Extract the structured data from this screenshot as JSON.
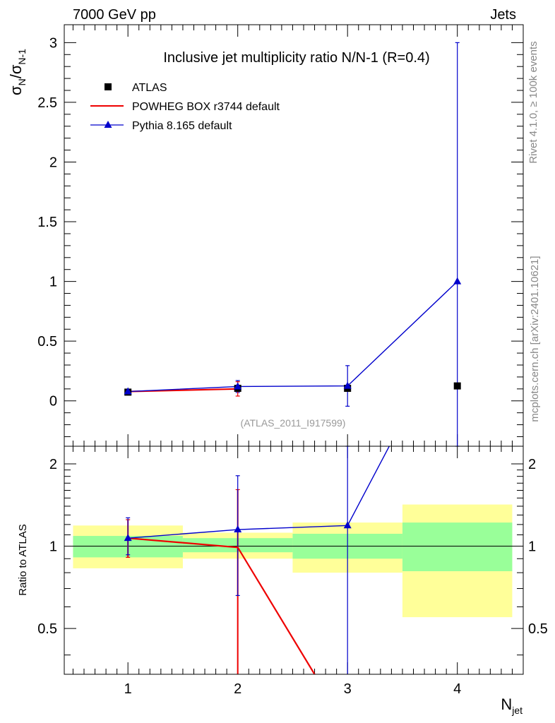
{
  "header": {
    "energy_label": "7000 GeV pp",
    "process_label": "Jets",
    "side_label_top": "Rivet 4.1.0, ≥ 100k events",
    "side_label_bottom": "mcplots.cern.ch [arXiv:2401.10621]"
  },
  "chart_data": [
    {
      "type": "scatter",
      "panel": "main",
      "title": "Inclusive jet multiplicity ratio N/N-1 (R=0.4)",
      "analysis_tag": "(ATLAS_2011_I917599)",
      "ylabel": "σ_N/σ_N-1",
      "ylim": [
        -0.38,
        3.15
      ],
      "xlim": [
        0.42,
        4.6
      ],
      "yticks": [
        0,
        0.5,
        1,
        1.5,
        2,
        2.5,
        3
      ],
      "ytick_labels": [
        "0",
        "0.5",
        "1",
        "1.5",
        "2",
        "2.5",
        "3"
      ],
      "legend": [
        "ATLAS",
        "POWHEG BOX r3744 default",
        "Pythia 8.165 default"
      ],
      "legend_position": "top-left",
      "series": [
        {
          "name": "ATLAS",
          "color": "#000000",
          "marker": "square",
          "x": [
            1,
            2,
            3,
            4
          ],
          "y": [
            0.073,
            0.105,
            0.105,
            0.125
          ],
          "yerr_low": [
            0.008,
            0.01,
            0.012,
            0.02
          ],
          "yerr_high": [
            0.008,
            0.01,
            0.012,
            0.02
          ]
        },
        {
          "name": "POWHEG BOX r3744 default",
          "color": "#ee0000",
          "marker": "line",
          "x": [
            1,
            2
          ],
          "y": [
            0.078,
            0.1
          ],
          "yerr_low": [
            0.012,
            0.06
          ],
          "yerr_high": [
            0.012,
            0.06
          ]
        },
        {
          "name": "Pythia 8.165 default",
          "color": "#0000cc",
          "marker": "triangle",
          "x": [
            1,
            2,
            3,
            4
          ],
          "y": [
            0.078,
            0.12,
            0.125,
            1.0
          ],
          "yerr_low": [
            0.012,
            0.05,
            0.17,
            1.5
          ],
          "yerr_high": [
            0.012,
            0.05,
            0.17,
            2.0
          ]
        }
      ]
    },
    {
      "type": "line",
      "panel": "ratio",
      "ylabel": "Ratio to ATLAS",
      "xlabel": "N_jet",
      "ylim": [
        0.34,
        2.32
      ],
      "yscale": "log",
      "xlim": [
        0.42,
        4.6
      ],
      "xticks": [
        1,
        2,
        3,
        4
      ],
      "xtick_labels": [
        "1",
        "2",
        "3",
        "4"
      ],
      "yticks": [
        0.5,
        1,
        2
      ],
      "ytick_labels": [
        "0.5",
        "1",
        "2"
      ],
      "reference_line": 1,
      "bands": [
        {
          "x_range": [
            0.5,
            1.5
          ],
          "inner": [
            0.91,
            1.09
          ],
          "outer": [
            0.83,
            1.19
          ]
        },
        {
          "x_range": [
            1.5,
            2.5
          ],
          "inner": [
            0.95,
            1.07
          ],
          "outer": [
            0.9,
            1.12
          ]
        },
        {
          "x_range": [
            2.5,
            3.5
          ],
          "inner": [
            0.9,
            1.11
          ],
          "outer": [
            0.8,
            1.22
          ]
        },
        {
          "x_range": [
            3.5,
            4.5
          ],
          "inner": [
            0.81,
            1.22
          ],
          "outer": [
            0.55,
            1.42
          ]
        }
      ],
      "series": [
        {
          "name": "POWHEG BOX r3744 default",
          "color": "#ee0000",
          "x": [
            1,
            2,
            2.7
          ],
          "y": [
            1.07,
            0.99,
            0.34
          ],
          "err_low": [
            0.16,
            0.65,
            null
          ],
          "err_high": [
            0.18,
            0.62,
            null
          ]
        },
        {
          "name": "Pythia 8.165 default",
          "color": "#0000cc",
          "x": [
            1,
            2,
            3,
            3.38
          ],
          "y": [
            1.07,
            1.15,
            1.19,
            2.32
          ],
          "err_low": [
            0.14,
            0.49,
            0.85,
            null
          ],
          "err_high": [
            0.2,
            0.66,
            1.13,
            null
          ]
        }
      ]
    }
  ]
}
